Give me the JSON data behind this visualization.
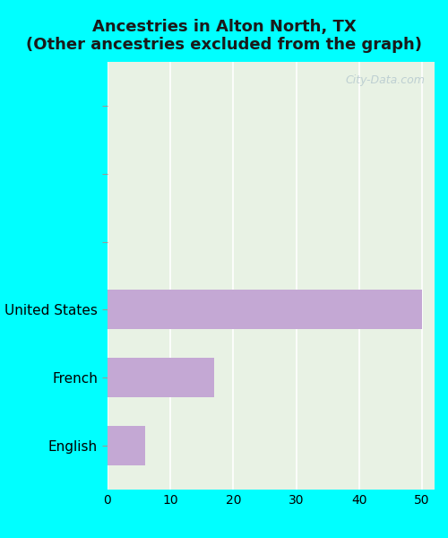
{
  "title_line1": "Ancestries in Alton North, TX",
  "title_line2": "(Other ancestries excluded from the graph)",
  "categories": [
    "",
    "",
    "",
    "United States",
    "French",
    "English"
  ],
  "values": [
    0,
    0,
    0,
    50,
    17,
    6
  ],
  "bar_color": "#c4a8d4",
  "plot_bg_color": "#e8f2e4",
  "figure_bg_color": "#00ffff",
  "xlim": [
    0,
    52
  ],
  "xticks": [
    0,
    10,
    20,
    30,
    40,
    50
  ],
  "title_fontsize": 13,
  "label_fontsize": 11,
  "tick_fontsize": 10,
  "watermark_text": "City-Data.com",
  "bar_height": 0.58
}
